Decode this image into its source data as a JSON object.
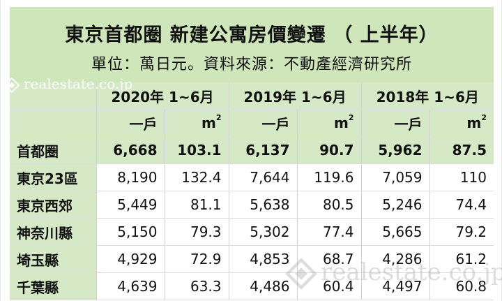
{
  "title": "東京首都圈 新建公寓房價變遷 （ 上半年）",
  "subtitle": "單位：萬日元。資料來源：不動產經濟研究所",
  "watermark": "realestate.co.jp",
  "years": [
    "2020年 1~6月",
    "2019年 1~6月",
    "2018年 1~6月"
  ],
  "units": {
    "per_unit": "一戶",
    "per_sqm": "m",
    "sqm_sup": "2"
  },
  "rows": [
    {
      "region": "首都圈",
      "values": [
        "6,668",
        "103.1",
        "6,137",
        "90.7",
        "5,962",
        "87.5"
      ]
    },
    {
      "region": "東京23區",
      "values": [
        "8,190",
        "132.4",
        "7,644",
        "119.6",
        "7,059",
        "110"
      ]
    },
    {
      "region": "東京西郊",
      "values": [
        "5,449",
        "81.1",
        "5,638",
        "80.5",
        "5,246",
        "74.4"
      ]
    },
    {
      "region": "神奈川縣",
      "values": [
        "5,150",
        "79.3",
        "5,302",
        "77.4",
        "5,665",
        "79.2"
      ]
    },
    {
      "region": "埼玉縣",
      "values": [
        "4,929",
        "72.9",
        "4,853",
        "68.7",
        "4,286",
        "61.2"
      ]
    },
    {
      "region": "千葉縣",
      "values": [
        "4,639",
        "63.3",
        "4,486",
        "60.4",
        "4,497",
        "60.8"
      ]
    }
  ],
  "colors": {
    "header_green": "#d6e9c6",
    "title_green": "#cfe6bb"
  }
}
